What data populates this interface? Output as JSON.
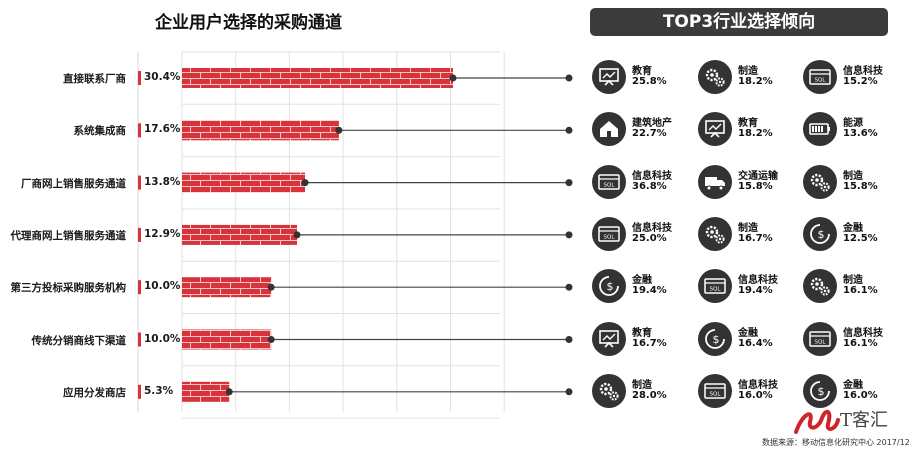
{
  "chart_data": {
    "type": "bar",
    "title": "企业用户选择的采购通道",
    "categories": [
      "直接联系厂商",
      "系统集成商",
      "厂商网上销售服务通道",
      "代理商网上销售服务通道",
      "第三方投标采购服务机构",
      "传统分销商线下渠道",
      "应用分发商店"
    ],
    "values": [
      30.4,
      17.6,
      13.8,
      12.9,
      10.0,
      10.0,
      5.3
    ],
    "value_labels": [
      "30.4%",
      "17.6%",
      "13.8%",
      "12.9%",
      "10.0%",
      "10.0%",
      "5.3%"
    ],
    "xlim": [
      0,
      100
    ],
    "grid": true,
    "bar_color": "#d8333a"
  },
  "right_panel": {
    "title": "TOP3行业选择倾向",
    "rows": [
      [
        {
          "name": "教育",
          "pct": "25.8%",
          "icon": "education-icon"
        },
        {
          "name": "制造",
          "pct": "18.2%",
          "icon": "gears-icon"
        },
        {
          "name": "信息科技",
          "pct": "15.2%",
          "icon": "sql-window-icon"
        }
      ],
      [
        {
          "name": "建筑地产",
          "pct": "22.7%",
          "icon": "house-icon"
        },
        {
          "name": "教育",
          "pct": "18.2%",
          "icon": "education-icon"
        },
        {
          "name": "能源",
          "pct": "13.6%",
          "icon": "battery-icon"
        }
      ],
      [
        {
          "name": "信息科技",
          "pct": "36.8%",
          "icon": "sql-window-icon"
        },
        {
          "name": "交通运输",
          "pct": "15.8%",
          "icon": "truck-icon"
        },
        {
          "name": "制造",
          "pct": "15.8%",
          "icon": "gears-icon"
        }
      ],
      [
        {
          "name": "信息科技",
          "pct": "25.0%",
          "icon": "sql-window-icon"
        },
        {
          "name": "制造",
          "pct": "16.7%",
          "icon": "gears-icon"
        },
        {
          "name": "金融",
          "pct": "12.5%",
          "icon": "money-icon"
        }
      ],
      [
        {
          "name": "金融",
          "pct": "19.4%",
          "icon": "money-icon"
        },
        {
          "name": "信息科技",
          "pct": "19.4%",
          "icon": "sql-window-icon"
        },
        {
          "name": "制造",
          "pct": "16.1%",
          "icon": "gears-icon"
        }
      ],
      [
        {
          "name": "教育",
          "pct": "16.7%",
          "icon": "education-icon"
        },
        {
          "name": "金融",
          "pct": "16.4%",
          "icon": "money-icon"
        },
        {
          "name": "信息科技",
          "pct": "16.1%",
          "icon": "sql-window-icon"
        }
      ],
      [
        {
          "name": "制造",
          "pct": "28.0%",
          "icon": "gears-icon"
        },
        {
          "name": "信息科技",
          "pct": "16.0%",
          "icon": "sql-window-icon"
        },
        {
          "name": "金融",
          "pct": "16.0%",
          "icon": "money-icon"
        }
      ]
    ]
  },
  "footer": {
    "source": "数据来源：移动信息化研究中心 2017/12",
    "logo_text": "T客汇"
  },
  "colors": {
    "bar": "#d8333a",
    "brick_line": "#f3c7c7",
    "circle": "#333333",
    "banner": "#3b3b3b",
    "logo_red": "#d0242a"
  }
}
